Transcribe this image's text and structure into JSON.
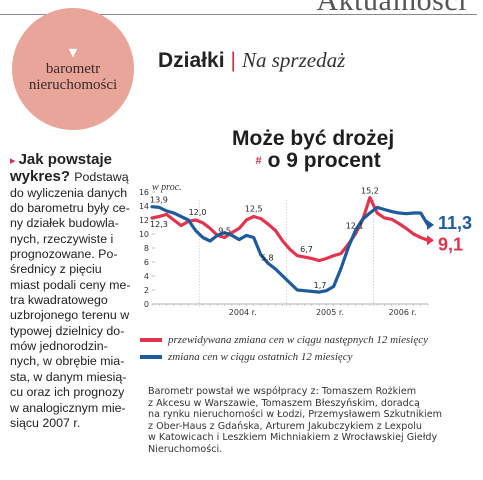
{
  "section": "Aktualności",
  "badge": {
    "arrow": "▼",
    "line1": "barometr",
    "line2": "nieruchomości"
  },
  "heading": {
    "main": "Działki",
    "separator": "|",
    "sub": "Na sprzedaż"
  },
  "sidebar_lines": [
    "Jak powstaje",
    "wykres? Podstawą",
    "do wyliczenia danych",
    "do barometru były ce-",
    "ny działek budowla-",
    "nych, rzeczywiste i",
    "prognozowane. Po-",
    "średnicy z pięciu",
    "miast podali ceny me-",
    "tra kwadratowego",
    "uzbrojonego terenu w",
    "typowej dzielnicy do-",
    "mów jednorodzin-",
    "nych, w obrębie mia-",
    "sta, w danym miesią-",
    "cu oraz ich prognozy",
    "w analogicznym mie-",
    "siącu 2007 r."
  ],
  "chart_title": {
    "line1": "Może być drożej",
    "hash": "#",
    "line2": "o 9 procent"
  },
  "colors": {
    "red": "#e0344f",
    "blue": "#1e5b9a",
    "badge": "#e8a59a",
    "grid": "#bbbbbb"
  },
  "chart_data": {
    "type": "line",
    "title": "Może być drożej o 9 procent",
    "ylabel": "w proc.",
    "ylim": [
      0,
      16
    ],
    "yticks": [
      0,
      2,
      4,
      6,
      8,
      10,
      12,
      14,
      16
    ],
    "x_ticks": [
      "2004 r.",
      "2005 r.",
      "2006 r."
    ],
    "grid": "vertical",
    "legend_position": "bottom",
    "series": [
      {
        "name": "przewidywana zmiana cen w ciągu następnych 12 miesięcy",
        "color": "#e0344f",
        "values": [
          12.3,
          12.5,
          12.8,
          12.0,
          11.2,
          11.8,
          12.0,
          11.6,
          10.8,
          9.8,
          9.5,
          10.2,
          10.8,
          12.0,
          12.5,
          12.2,
          11.4,
          10.5,
          9.0,
          7.8,
          6.9,
          6.7,
          6.5,
          6.2,
          6.5,
          6.9,
          7.2,
          8.5,
          10.0,
          12.0,
          15.2,
          13.0,
          12.3,
          12.1,
          11.5,
          10.8,
          10.0,
          9.5,
          9.1
        ]
      },
      {
        "name": "zmiana cen w ciągu ostatnich 12 miesięcy",
        "color": "#1e5b9a",
        "values": [
          13.9,
          13.8,
          13.3,
          13.0,
          12.5,
          12.0,
          10.5,
          9.5,
          9.0,
          9.8,
          10.2,
          9.8,
          9.2,
          9.8,
          9.5,
          7.0,
          5.8,
          5.0,
          4.0,
          3.0,
          2.0,
          1.9,
          1.8,
          1.7,
          1.9,
          2.5,
          5.0,
          8.0,
          10.5,
          12.1,
          13.0,
          13.8,
          13.5,
          13.2,
          13.0,
          12.9,
          13.0,
          13.0,
          11.3
        ]
      }
    ],
    "annotations": [
      {
        "series": 1,
        "index": 0,
        "label": "13,9"
      },
      {
        "series": 0,
        "index": 0,
        "label": "12,3"
      },
      {
        "series": 0,
        "index": 6,
        "label": "12,0"
      },
      {
        "series": 0,
        "index": 10,
        "label": "9,5"
      },
      {
        "series": 0,
        "index": 14,
        "label": "12,5"
      },
      {
        "series": 1,
        "index": 16,
        "label": "5,8"
      },
      {
        "series": 0,
        "index": 21,
        "label": "6,7"
      },
      {
        "series": 1,
        "index": 23,
        "label": "1,7"
      },
      {
        "series": 0,
        "index": 30,
        "label": "15,2"
      },
      {
        "series": 1,
        "index": 29,
        "label": "12,1"
      },
      {
        "series": 1,
        "index": 38,
        "label": "11,3"
      },
      {
        "series": 0,
        "index": 38,
        "label": "9,1"
      }
    ]
  },
  "footnote_lines": [
    "Barometr powstał we współpracy z: Tomaszem Rożkiem",
    "z Akcesu w Warszawie, Tomaszem Błeszyńskim, doradcą",
    "na rynku nieruchomości w Łodzi, Przemysławem Szkutnikiem",
    "z Ober-Haus z Gdańska, Arturem Jakubczykiem z Lexpolu",
    "w Katowicach i Leszkiem Michniakiem z Wrocławskiej Giełdy",
    "Nieruchomości."
  ]
}
